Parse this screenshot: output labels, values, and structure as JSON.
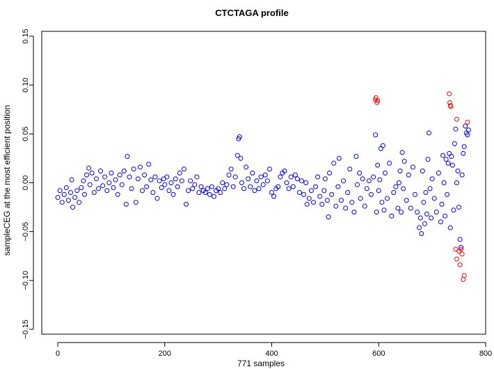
{
  "chart_data": {
    "type": "scatter",
    "title": "CTCTAGA profile",
    "xlabel": "771 samples",
    "ylabel": "sampleCEG at the most efficient position",
    "xlim": [
      -30,
      800
    ],
    "ylim": [
      -0.155,
      0.155
    ],
    "x_ticks": [
      0,
      200,
      400,
      600,
      800
    ],
    "x_tick_labels": [
      "0",
      "200",
      "400",
      "600",
      "800"
    ],
    "y_ticks": [
      -0.15,
      -0.1,
      -0.05,
      0.0,
      0.05,
      0.1,
      0.15
    ],
    "y_tick_labels": [
      "−0.15",
      "−0.10",
      "−0.05",
      "0.00",
      "0.05",
      "0.10",
      "0.15"
    ],
    "grid": false,
    "legend": "none",
    "marker": "open-circle",
    "colors": {
      "normal": "#0000ff",
      "outlier": "#ff0000",
      "axis": "#000000"
    },
    "series": [
      {
        "color": "#0000ff",
        "points": [
          [
            0,
            -0.015
          ],
          [
            4,
            -0.008
          ],
          [
            8,
            -0.02
          ],
          [
            12,
            -0.012
          ],
          [
            16,
            -0.005
          ],
          [
            20,
            -0.018
          ],
          [
            24,
            -0.01
          ],
          [
            26,
            0.003
          ],
          [
            28,
            -0.025
          ],
          [
            32,
            -0.015
          ],
          [
            36,
            -0.008
          ],
          [
            40,
            -0.02
          ],
          [
            44,
            -0.005
          ],
          [
            48,
            0.002
          ],
          [
            50,
            -0.012
          ],
          [
            54,
            0.008
          ],
          [
            58,
            0.015
          ],
          [
            60,
            -0.002
          ],
          [
            64,
            0.01
          ],
          [
            68,
            -0.01
          ],
          [
            72,
            0.004
          ],
          [
            76,
            -0.006
          ],
          [
            80,
            0.012
          ],
          [
            84,
            -0.003
          ],
          [
            88,
            0.006
          ],
          [
            92,
            -0.008
          ],
          [
            96,
            0.0
          ],
          [
            100,
            0.01
          ],
          [
            104,
            -0.005
          ],
          [
            108,
            0.003
          ],
          [
            112,
            -0.012
          ],
          [
            116,
            0.008
          ],
          [
            120,
            -0.002
          ],
          [
            124,
            0.012
          ],
          [
            128,
            -0.022
          ],
          [
            130,
            0.027
          ],
          [
            134,
            0.006
          ],
          [
            138,
            -0.006
          ],
          [
            142,
            0.014
          ],
          [
            146,
            -0.02
          ],
          [
            150,
            0.004
          ],
          [
            154,
            0.016
          ],
          [
            158,
            -0.008
          ],
          [
            162,
            0.008
          ],
          [
            166,
            -0.004
          ],
          [
            170,
            0.019
          ],
          [
            174,
            0.003
          ],
          [
            178,
            -0.01
          ],
          [
            182,
            0.006
          ],
          [
            186,
            -0.016
          ],
          [
            190,
            0.002
          ],
          [
            194,
            -0.005
          ],
          [
            198,
            0.004
          ],
          [
            200,
            -0.002
          ],
          [
            204,
            0.006
          ],
          [
            208,
            -0.008
          ],
          [
            212,
            0.0
          ],
          [
            216,
            -0.012
          ],
          [
            220,
            0.004
          ],
          [
            224,
            -0.004
          ],
          [
            228,
            0.01
          ],
          [
            232,
            0.002
          ],
          [
            236,
            0.014
          ],
          [
            240,
            -0.022
          ],
          [
            244,
            -0.008
          ],
          [
            248,
            0.002
          ],
          [
            252,
            -0.006
          ],
          [
            256,
            -0.002
          ],
          [
            260,
            0.006
          ],
          [
            264,
            -0.01
          ],
          [
            268,
            -0.004
          ],
          [
            272,
            -0.008
          ],
          [
            276,
            -0.01
          ],
          [
            280,
            -0.006
          ],
          [
            284,
            -0.012
          ],
          [
            288,
            -0.004
          ],
          [
            292,
            -0.014
          ],
          [
            296,
            -0.008
          ],
          [
            300,
            -0.006
          ],
          [
            304,
            -0.01
          ],
          [
            308,
            0.0
          ],
          [
            312,
            -0.006
          ],
          [
            316,
            -0.002
          ],
          [
            320,
            0.008
          ],
          [
            324,
            0.014
          ],
          [
            328,
            -0.004
          ],
          [
            332,
            0.006
          ],
          [
            336,
            0.028
          ],
          [
            338,
            0.045
          ],
          [
            340,
            0.047
          ],
          [
            342,
            0.025
          ],
          [
            344,
            0.0
          ],
          [
            348,
            -0.006
          ],
          [
            352,
            0.016
          ],
          [
            356,
            0.004
          ],
          [
            360,
            -0.004
          ],
          [
            364,
            0.01
          ],
          [
            368,
            -0.008
          ],
          [
            372,
            0.002
          ],
          [
            376,
            -0.006
          ],
          [
            380,
            0.006
          ],
          [
            384,
            -0.002
          ],
          [
            388,
            0.008
          ],
          [
            392,
            0.002
          ],
          [
            396,
            0.014
          ],
          [
            400,
            -0.01
          ],
          [
            404,
            -0.014
          ],
          [
            408,
            -0.006
          ],
          [
            412,
            -0.004
          ],
          [
            416,
            0.006
          ],
          [
            420,
            0.01
          ],
          [
            424,
            0.012
          ],
          [
            428,
            0.0
          ],
          [
            432,
            -0.006
          ],
          [
            436,
            0.006
          ],
          [
            440,
            -0.004
          ],
          [
            444,
            0.008
          ],
          [
            448,
            0.004
          ],
          [
            452,
            -0.01
          ],
          [
            456,
            0.002
          ],
          [
            460,
            -0.012
          ],
          [
            464,
            0.0
          ],
          [
            466,
            -0.022
          ],
          [
            470,
            -0.016
          ],
          [
            474,
            -0.008
          ],
          [
            478,
            -0.02
          ],
          [
            482,
            -0.004
          ],
          [
            486,
            0.006
          ],
          [
            490,
            -0.014
          ],
          [
            494,
            -0.022
          ],
          [
            498,
            -0.008
          ],
          [
            500,
            0.004
          ],
          [
            504,
            -0.018
          ],
          [
            506,
            -0.035
          ],
          [
            508,
            0.01
          ],
          [
            512,
            -0.012
          ],
          [
            516,
            0.02
          ],
          [
            520,
            -0.024
          ],
          [
            524,
            -0.004
          ],
          [
            526,
            0.025
          ],
          [
            530,
            -0.018
          ],
          [
            534,
            0.002
          ],
          [
            538,
            -0.026
          ],
          [
            542,
            -0.01
          ],
          [
            546,
            0.014
          ],
          [
            550,
            -0.02
          ],
          [
            554,
            -0.03
          ],
          [
            558,
            0.027
          ],
          [
            560,
            -0.002
          ],
          [
            564,
            0.01
          ],
          [
            566,
            -0.016
          ],
          [
            570,
            0.004
          ],
          [
            574,
            -0.024
          ],
          [
            578,
            -0.006
          ],
          [
            582,
            0.002
          ],
          [
            586,
            -0.012
          ],
          [
            590,
            0.006
          ],
          [
            594,
            0.049
          ],
          [
            596,
            -0.03
          ],
          [
            598,
            0.018
          ],
          [
            600,
            -0.008
          ],
          [
            602,
            0.003
          ],
          [
            604,
            0.035
          ],
          [
            606,
            -0.02
          ],
          [
            608,
            0.038
          ],
          [
            610,
            -0.028
          ],
          [
            612,
            0.01
          ],
          [
            616,
            -0.016
          ],
          [
            620,
            0.02
          ],
          [
            624,
            -0.034
          ],
          [
            628,
            -0.01
          ],
          [
            632,
            -0.004
          ],
          [
            636,
            -0.026
          ],
          [
            638,
            0.0
          ],
          [
            640,
            0.012
          ],
          [
            642,
            -0.03
          ],
          [
            644,
            0.031
          ],
          [
            646,
            -0.006
          ],
          [
            648,
            0.022
          ],
          [
            652,
            -0.018
          ],
          [
            656,
            0.008
          ],
          [
            660,
            -0.026
          ],
          [
            664,
            0.016
          ],
          [
            668,
            -0.012
          ],
          [
            672,
            -0.03
          ],
          [
            676,
            -0.046
          ],
          [
            678,
            -0.036
          ],
          [
            680,
            -0.052
          ],
          [
            682,
            0.012
          ],
          [
            684,
            -0.02
          ],
          [
            686,
            -0.042
          ],
          [
            688,
            -0.01
          ],
          [
            690,
            -0.032
          ],
          [
            692,
            0.024
          ],
          [
            694,
            0.051
          ],
          [
            696,
            -0.006
          ],
          [
            698,
            -0.036
          ],
          [
            700,
            0.004
          ],
          [
            704,
            -0.016
          ],
          [
            708,
            -0.03
          ],
          [
            712,
            0.01
          ],
          [
            716,
            -0.04
          ],
          [
            718,
            -0.022
          ],
          [
            720,
            0.028
          ],
          [
            722,
            0.0
          ],
          [
            724,
            -0.034
          ],
          [
            726,
            0.024
          ],
          [
            728,
            -0.012
          ],
          [
            730,
            0.02
          ],
          [
            732,
            0.03
          ],
          [
            734,
            -0.046
          ],
          [
            736,
            0.027
          ],
          [
            738,
            0.018
          ],
          [
            740,
            -0.028
          ],
          [
            742,
            0.04
          ],
          [
            744,
            0.055
          ],
          [
            746,
            0.0
          ],
          [
            748,
            0.012
          ],
          [
            750,
            -0.025
          ],
          [
            752,
            -0.058
          ],
          [
            754,
            -0.066
          ],
          [
            756,
            0.008
          ],
          [
            758,
            0.03
          ],
          [
            760,
            0.037
          ],
          [
            762,
            0.058
          ],
          [
            764,
            0.051
          ],
          [
            766,
            0.049
          ],
          [
            768,
            0.054
          ]
        ]
      },
      {
        "color": "#ff0000",
        "points": [
          [
            594,
            0.085
          ],
          [
            595,
            0.087
          ],
          [
            597,
            0.082
          ],
          [
            598,
            0.084
          ],
          [
            732,
            0.091
          ],
          [
            733,
            0.082
          ],
          [
            734,
            0.079
          ],
          [
            735,
            0.078
          ],
          [
            746,
            0.065
          ],
          [
            744,
            -0.068
          ],
          [
            746,
            -0.078
          ],
          [
            750,
            -0.07
          ],
          [
            752,
            -0.084
          ],
          [
            754,
            -0.068
          ],
          [
            756,
            -0.073
          ],
          [
            758,
            -0.099
          ],
          [
            760,
            -0.095
          ],
          [
            766,
            0.062
          ]
        ]
      }
    ]
  }
}
